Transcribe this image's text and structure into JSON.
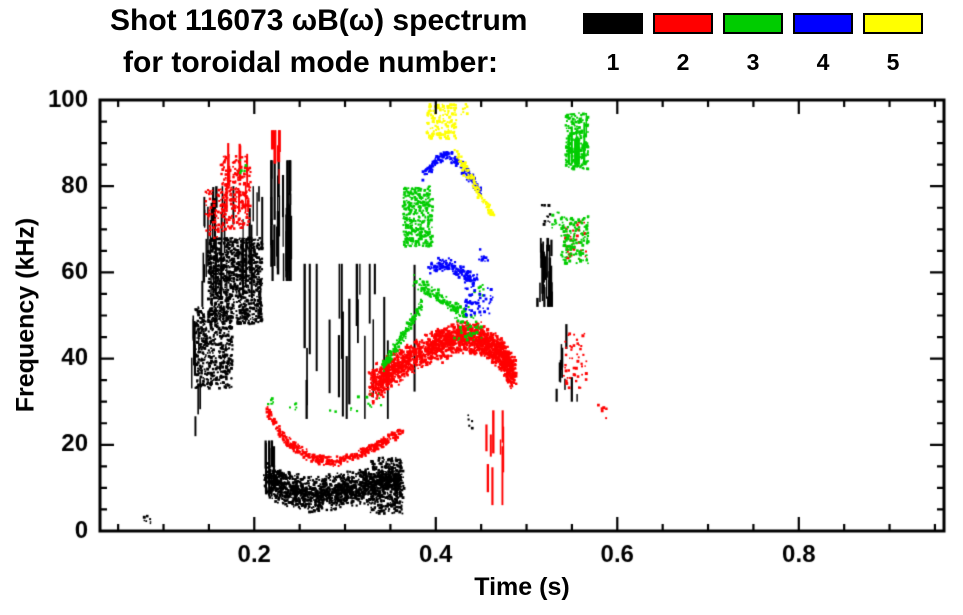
{
  "page": {
    "background": "#ffffff"
  },
  "chart_data": {
    "type": "scatter",
    "title": "Shot 116073 ωB(ω) spectrum",
    "subtitle": "for toroidal mode number:",
    "xlabel": "Time (s)",
    "ylabel": "Frequency (kHz)",
    "xlim": [
      0.03,
      0.96
    ],
    "ylim": [
      0,
      100
    ],
    "grid": false,
    "legend_position": "top-right",
    "x_minor_step": 0.05,
    "y_minor_step": 5,
    "xticks": [
      {
        "v": 0.2,
        "label": "0.2"
      },
      {
        "v": 0.4,
        "label": "0.4"
      },
      {
        "v": 0.6,
        "label": "0.6"
      },
      {
        "v": 0.8,
        "label": "0.8"
      }
    ],
    "yticks": [
      {
        "v": 0,
        "label": "0"
      },
      {
        "v": 20,
        "label": "20"
      },
      {
        "v": 40,
        "label": "40"
      },
      {
        "v": 60,
        "label": "60"
      },
      {
        "v": 80,
        "label": "80"
      },
      {
        "v": 100,
        "label": "100"
      }
    ],
    "series": [
      {
        "name": "1",
        "color": "#000000",
        "clusters": [
          {
            "type": "dots",
            "t": [
              0.077,
              0.086
            ],
            "f": [
              1.5,
              3.5
            ],
            "n": 7
          },
          {
            "type": "vstreaks",
            "t": [
              0.131,
              0.142
            ],
            "f": [
              22,
              50
            ],
            "n": 10,
            "len": [
              4,
              12
            ]
          },
          {
            "type": "dots",
            "t": [
              0.135,
              0.176
            ],
            "f": [
              33,
              52
            ],
            "n": 450
          },
          {
            "type": "dots",
            "t": [
              0.149,
              0.209
            ],
            "f": [
              48,
              68
            ],
            "n": 950
          },
          {
            "type": "vstreaks",
            "t": [
              0.14,
              0.209
            ],
            "f": [
              52,
              80
            ],
            "n": 36,
            "len": [
              4,
              14
            ]
          },
          {
            "type": "vstreaks",
            "t": [
              0.218,
              0.241
            ],
            "f": [
              58,
              86
            ],
            "n": 40,
            "len": [
              5,
              18
            ]
          },
          {
            "type": "vstreaks",
            "t": [
              0.244,
              0.385
            ],
            "f": [
              26,
              62
            ],
            "n": 22,
            "len": [
              10,
              30
            ]
          },
          {
            "type": "vstreaks",
            "t": [
              0.211,
              0.222
            ],
            "f": [
              8,
              21
            ],
            "n": 8,
            "len": [
              5,
              12
            ]
          },
          {
            "type": "path",
            "pts": [
              [
                0.213,
                12
              ],
              [
                0.24,
                9.5
              ],
              [
                0.265,
                8.5
              ],
              [
                0.29,
                9
              ],
              [
                0.315,
                10
              ],
              [
                0.34,
                11
              ],
              [
                0.362,
                11.5
              ]
            ],
            "w": 4.5,
            "n": 1600,
            "jt": 0.004
          },
          {
            "type": "dots",
            "t": [
              0.328,
              0.364
            ],
            "f": [
              4,
              17
            ],
            "n": 260
          },
          {
            "type": "dots",
            "t": [
              0.435,
              0.442
            ],
            "f": [
              23,
              27
            ],
            "n": 6
          },
          {
            "type": "vstreaks",
            "t": [
              0.512,
              0.529
            ],
            "f": [
              52,
              68
            ],
            "n": 28,
            "len": [
              3,
              10
            ]
          },
          {
            "type": "dots",
            "t": [
              0.517,
              0.526
            ],
            "f": [
              71,
              76
            ],
            "n": 10
          },
          {
            "type": "vstreaks",
            "t": [
              0.533,
              0.556
            ],
            "f": [
              30,
              48
            ],
            "n": 10,
            "len": [
              2,
              7
            ]
          }
        ]
      },
      {
        "name": "2",
        "color": "#ff0000",
        "clusters": [
          {
            "type": "dots",
            "t": [
              0.146,
              0.167
            ],
            "f": [
              68,
              80
            ],
            "n": 60
          },
          {
            "type": "dots",
            "t": [
              0.163,
              0.196
            ],
            "f": [
              70,
              87
            ],
            "n": 240
          },
          {
            "type": "vstreaks",
            "t": [
              0.168,
              0.196
            ],
            "f": [
              74,
              90
            ],
            "n": 14,
            "len": [
              3,
              9
            ]
          },
          {
            "type": "vstreaks",
            "t": [
              0.219,
              0.23
            ],
            "f": [
              79,
              93
            ],
            "n": 8,
            "len": [
              3,
              9
            ]
          },
          {
            "type": "path",
            "pts": [
              [
                0.214,
                28
              ],
              [
                0.235,
                21
              ],
              [
                0.262,
                17
              ],
              [
                0.287,
                16
              ],
              [
                0.312,
                17.5
              ],
              [
                0.337,
                20
              ],
              [
                0.362,
                23
              ]
            ],
            "w": 1.3,
            "n": 420,
            "jt": 0.003
          },
          {
            "type": "path",
            "pts": [
              [
                0.328,
                33.5
              ],
              [
                0.358,
                38
              ],
              [
                0.395,
                42.5
              ],
              [
                0.425,
                45
              ],
              [
                0.45,
                44.5
              ],
              [
                0.472,
                41
              ],
              [
                0.486,
                36.5
              ]
            ],
            "w": 4.3,
            "n": 2200,
            "jt": 0.004
          },
          {
            "type": "vstreaks",
            "t": [
              0.452,
              0.475
            ],
            "f": [
              6,
              28
            ],
            "n": 9,
            "len": [
              3,
              14
            ]
          },
          {
            "type": "dots",
            "t": [
              0.54,
              0.566
            ],
            "f": [
              33,
              46
            ],
            "n": 48
          },
          {
            "type": "dots",
            "t": [
              0.542,
              0.566
            ],
            "f": [
              63,
              72
            ],
            "n": 40
          },
          {
            "type": "dots",
            "t": [
              0.578,
              0.589
            ],
            "f": [
              26,
              30
            ],
            "n": 6
          }
        ]
      },
      {
        "name": "3",
        "color": "#00cc00",
        "clusters": [
          {
            "type": "dots",
            "t": [
              0.184,
              0.193
            ],
            "f": [
              83,
              87
            ],
            "n": 6
          },
          {
            "type": "dots",
            "t": [
              0.213,
              0.223
            ],
            "f": [
              28,
              32
            ],
            "n": 6
          },
          {
            "type": "dots",
            "t": [
              0.235,
              0.247
            ],
            "f": [
              28,
              31
            ],
            "n": 5
          },
          {
            "type": "dots",
            "t": [
              0.27,
              0.35
            ],
            "f": [
              27,
              32
            ],
            "n": 14
          },
          {
            "type": "path",
            "pts": [
              [
                0.342,
                38
              ],
              [
                0.357,
                43
              ],
              [
                0.372,
                48
              ],
              [
                0.385,
                53
              ]
            ],
            "w": 1.5,
            "n": 140,
            "jt": 0.003
          },
          {
            "type": "dots",
            "t": [
              0.364,
              0.397
            ],
            "f": [
              66,
              80
            ],
            "n": 340
          },
          {
            "type": "path",
            "pts": [
              [
                0.377,
                58
              ],
              [
                0.398,
                55
              ],
              [
                0.416,
                52.5
              ],
              [
                0.433,
                50.5
              ]
            ],
            "w": 1.8,
            "n": 140,
            "jt": 0.004
          },
          {
            "type": "dots",
            "t": [
              0.42,
              0.451
            ],
            "f": [
              44,
              50
            ],
            "n": 45
          },
          {
            "type": "dots",
            "t": [
              0.437,
              0.453
            ],
            "f": [
              54,
              58
            ],
            "n": 10
          },
          {
            "type": "dots",
            "t": [
              0.528,
              0.537
            ],
            "f": [
              70,
              75
            ],
            "n": 10
          },
          {
            "type": "dots",
            "t": [
              0.538,
              0.568
            ],
            "f": [
              62,
              73
            ],
            "n": 150
          },
          {
            "type": "dots",
            "t": [
              0.543,
              0.568
            ],
            "f": [
              84,
              97
            ],
            "n": 210
          },
          {
            "type": "vstreaks",
            "t": [
              0.545,
              0.566
            ],
            "f": [
              85,
              97
            ],
            "n": 10,
            "len": [
              4,
              10
            ]
          }
        ]
      },
      {
        "name": "4",
        "color": "#0000ff",
        "clusters": [
          {
            "type": "path",
            "pts": [
              [
                0.385,
                82
              ],
              [
                0.398,
                85.5
              ],
              [
                0.412,
                87.5
              ],
              [
                0.427,
                85
              ],
              [
                0.44,
                81.5
              ],
              [
                0.449,
                79
              ]
            ],
            "w": 1.4,
            "n": 190,
            "jt": 0.003
          },
          {
            "type": "path",
            "pts": [
              [
                0.394,
                61
              ],
              [
                0.411,
                62
              ],
              [
                0.429,
                60
              ],
              [
                0.445,
                58
              ]
            ],
            "w": 1.7,
            "n": 150,
            "jt": 0.004
          },
          {
            "type": "dots",
            "t": [
              0.432,
              0.463
            ],
            "f": [
              50,
              57
            ],
            "n": 55
          },
          {
            "type": "dots",
            "t": [
              0.447,
              0.458
            ],
            "f": [
              62,
              66
            ],
            "n": 10
          }
        ]
      },
      {
        "name": "5",
        "color": "#ffff00",
        "clusters": [
          {
            "type": "dots",
            "t": [
              0.39,
              0.423
            ],
            "f": [
              91,
              99
            ],
            "n": 160
          },
          {
            "type": "path",
            "pts": [
              [
                0.421,
                88
              ],
              [
                0.433,
                84
              ],
              [
                0.444,
                80
              ],
              [
                0.455,
                76
              ],
              [
                0.463,
                73
              ]
            ],
            "w": 1.4,
            "n": 100,
            "jt": 0.003
          },
          {
            "type": "dots",
            "t": [
              0.428,
              0.435
            ],
            "f": [
              96,
              99
            ],
            "n": 8
          }
        ]
      }
    ]
  }
}
